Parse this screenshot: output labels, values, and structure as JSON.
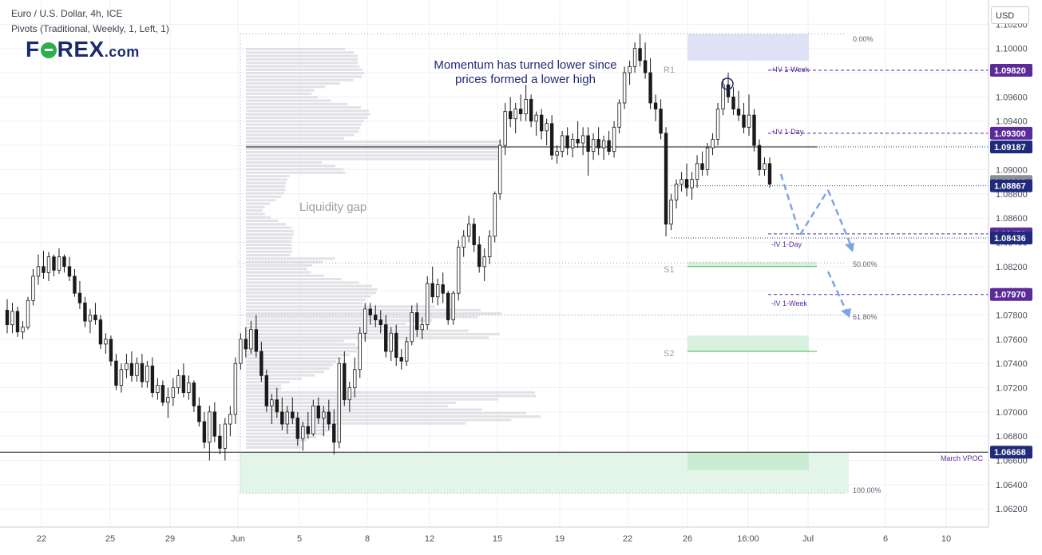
{
  "header": {
    "symbol_line": "Euro / U.S. Dollar, 4h, ICE",
    "indicator_line": "Pivots (Traditional, Weekly, 1, Left, 1)"
  },
  "logo": {
    "text_left": "F",
    "text_right": "REX",
    "suffix": ".com"
  },
  "currency_button": "USD",
  "colors": {
    "accent_purple": "#5b2a9b",
    "dark_blue_label": "#1f2a7a",
    "support_fill": "#d8f2e0",
    "resistance_fill": "#dfe2f5",
    "arrow_blue": "#7fa4e6"
  },
  "chart_data": {
    "type": "candlestick",
    "y_axis": {
      "ylim": [
        1.0605,
        1.104
      ],
      "tick_labels": [
        "1.10200",
        "1.10000",
        "1.09800",
        "1.09600",
        "1.09400",
        "1.09200",
        "1.09000",
        "1.08800",
        "1.08600",
        "1.08400",
        "1.08200",
        "1.08000",
        "1.07800",
        "1.07600",
        "1.07400",
        "1.07200",
        "1.07000",
        "1.06800",
        "1.06600",
        "1.06400",
        "1.06200"
      ]
    },
    "x_axis": {
      "labels": [
        "22",
        "25",
        "29",
        "Jun",
        "5",
        "8",
        "12",
        "15",
        "19",
        "22",
        "26",
        "16:00",
        "Jul",
        "6",
        "10"
      ]
    },
    "price_labels": [
      {
        "text": "1.09820",
        "value": 1.0982,
        "style": "purple"
      },
      {
        "text": "1.09300",
        "value": 1.093,
        "style": "purple"
      },
      {
        "text": "1.09187",
        "value": 1.09187,
        "style": "navy"
      },
      {
        "text": "1.08902",
        "value": 1.08902,
        "style": "gray"
      },
      {
        "text": "1.08867",
        "value": 1.08867,
        "style": "navy"
      },
      {
        "text": "1.08470",
        "value": 1.0847,
        "style": "purple"
      },
      {
        "text": "1.08436",
        "value": 1.08436,
        "style": "navy"
      },
      {
        "text": "1.07970",
        "value": 1.0797,
        "style": "purple"
      },
      {
        "text": "1.06668",
        "value": 1.06668,
        "style": "navy"
      }
    ],
    "annotations": {
      "momentum": [
        "Momentum has turned lower since",
        "prices formed a lower high"
      ],
      "liquidity_gap": "Liquidity gap",
      "march_vpoc": "March VPOC",
      "iv_week_up": "+IV 1-Week",
      "iv_day_up": "+IV 1-Day",
      "iv_day_down": "-IV 1-Day",
      "iv_week_down": "-IV 1-Week",
      "pivot_r1": "R1",
      "pivot_s1": "S1",
      "pivot_s2": "S2",
      "fib_0": "0.00%",
      "fib_50": "50.00%",
      "fib_618": "61.80%",
      "fib_100": "100.00%"
    },
    "levels": {
      "iv_week_up": 1.0982,
      "iv_day_up": 1.093,
      "poc": 1.09187,
      "current": 1.08867,
      "iv_day_down": 1.0847,
      "low_line": 1.08436,
      "fib_0": 1.1012,
      "fib_50": 1.0823,
      "fib_618": 1.078,
      "fib_100": 1.0633,
      "march_vpoc": 1.06668,
      "iv_week_down": 1.0797,
      "r1_zone": [
        1.099,
        1.1012
      ],
      "s1_zone": [
        1.082,
        1.0824
      ],
      "s2_zone": [
        1.075,
        1.0763
      ],
      "lower_zone": [
        1.0633,
        1.06668
      ],
      "lower_zone_dark": [
        1.0652,
        1.06668
      ]
    },
    "candles": [
      [
        1.0784,
        1.0793,
        1.0765,
        1.0772
      ],
      [
        1.0772,
        1.079,
        1.0765,
        1.0783
      ],
      [
        1.0783,
        1.0787,
        1.0762,
        1.0766
      ],
      [
        1.0766,
        1.0775,
        1.076,
        1.077
      ],
      [
        1.077,
        1.0795,
        1.0768,
        1.0792
      ],
      [
        1.0792,
        1.0818,
        1.0788,
        1.0812
      ],
      [
        1.0812,
        1.083,
        1.0805,
        1.082
      ],
      [
        1.082,
        1.0833,
        1.081,
        1.0815
      ],
      [
        1.0815,
        1.0832,
        1.0808,
        1.0828
      ],
      [
        1.0828,
        1.083,
        1.0812,
        1.0817
      ],
      [
        1.0817,
        1.0835,
        1.0814,
        1.0828
      ],
      [
        1.0828,
        1.083,
        1.0815,
        1.082
      ],
      [
        1.082,
        1.0828,
        1.0808,
        1.0812
      ],
      [
        1.0812,
        1.0818,
        1.0795,
        1.0798
      ],
      [
        1.0798,
        1.0808,
        1.0785,
        1.079
      ],
      [
        1.079,
        1.0795,
        1.077,
        1.0775
      ],
      [
        1.0775,
        1.0785,
        1.0765,
        1.078
      ],
      [
        1.078,
        1.079,
        1.0772,
        1.0776
      ],
      [
        1.0776,
        1.078,
        1.0752,
        1.0756
      ],
      [
        1.0756,
        1.0765,
        1.0748,
        1.076
      ],
      [
        1.076,
        1.0763,
        1.0738,
        1.0742
      ],
      [
        1.0742,
        1.0748,
        1.0718,
        1.0722
      ],
      [
        1.0722,
        1.074,
        1.0716,
        1.0735
      ],
      [
        1.0735,
        1.0748,
        1.0728,
        1.074
      ],
      [
        1.074,
        1.075,
        1.0725,
        1.073
      ],
      [
        1.073,
        1.0745,
        1.0725,
        1.074
      ],
      [
        1.074,
        1.0748,
        1.072,
        1.0725
      ],
      [
        1.0725,
        1.0742,
        1.072,
        1.0738
      ],
      [
        1.0738,
        1.0745,
        1.0712,
        1.0716
      ],
      [
        1.0716,
        1.0728,
        1.071,
        1.0722
      ],
      [
        1.0722,
        1.0726,
        1.0705,
        1.0708
      ],
      [
        1.0708,
        1.072,
        1.0695,
        1.0712
      ],
      [
        1.0712,
        1.0728,
        1.0705,
        1.072
      ],
      [
        1.072,
        1.0735,
        1.0715,
        1.073
      ],
      [
        1.073,
        1.074,
        1.0712,
        1.0716
      ],
      [
        1.0716,
        1.073,
        1.071,
        1.0724
      ],
      [
        1.0724,
        1.0726,
        1.07,
        1.0705
      ],
      [
        1.0705,
        1.0712,
        1.0688,
        1.0692
      ],
      [
        1.0692,
        1.07,
        1.067,
        1.0675
      ],
      [
        1.0675,
        1.0705,
        1.066,
        1.07
      ],
      [
        1.07,
        1.0708,
        1.0675,
        1.068
      ],
      [
        1.068,
        1.069,
        1.0665,
        1.067
      ],
      [
        1.067,
        1.0695,
        1.066,
        1.069
      ],
      [
        1.069,
        1.0705,
        1.068,
        1.0698
      ],
      [
        1.0698,
        1.0745,
        1.069,
        1.074
      ],
      [
        1.074,
        1.0765,
        1.0735,
        1.076
      ],
      [
        1.076,
        1.077,
        1.0745,
        1.0752
      ],
      [
        1.0752,
        1.0775,
        1.0748,
        1.0768
      ],
      [
        1.0768,
        1.078,
        1.0745,
        1.075
      ],
      [
        1.075,
        1.0758,
        1.0725,
        1.073
      ],
      [
        1.073,
        1.0735,
        1.07,
        1.0705
      ],
      [
        1.0705,
        1.0715,
        1.069,
        1.071
      ],
      [
        1.071,
        1.072,
        1.0695,
        1.07
      ],
      [
        1.07,
        1.0712,
        1.0685,
        1.069
      ],
      [
        1.069,
        1.0705,
        1.0682,
        1.07
      ],
      [
        1.07,
        1.0712,
        1.069,
        1.0695
      ],
      [
        1.0695,
        1.07,
        1.0672,
        1.0678
      ],
      [
        1.0678,
        1.0692,
        1.0668,
        1.0688
      ],
      [
        1.0688,
        1.07,
        1.0678,
        1.0682
      ],
      [
        1.0682,
        1.071,
        1.068,
        1.0705
      ],
      [
        1.0705,
        1.0712,
        1.069,
        1.0695
      ],
      [
        1.0695,
        1.0705,
        1.068,
        1.07
      ],
      [
        1.07,
        1.071,
        1.0685,
        1.069
      ],
      [
        1.069,
        1.0702,
        1.0665,
        1.0675
      ],
      [
        1.0675,
        1.0745,
        1.067,
        1.074
      ],
      [
        1.074,
        1.075,
        1.0705,
        1.071
      ],
      [
        1.071,
        1.0725,
        1.07,
        1.072
      ],
      [
        1.072,
        1.0745,
        1.0712,
        1.0735
      ],
      [
        1.0735,
        1.077,
        1.0728,
        1.0765
      ],
      [
        1.0765,
        1.079,
        1.0758,
        1.0785
      ],
      [
        1.0785,
        1.079,
        1.0772,
        1.078
      ],
      [
        1.078,
        1.0788,
        1.077,
        1.0776
      ],
      [
        1.0776,
        1.0784,
        1.0765,
        1.0772
      ],
      [
        1.0772,
        1.078,
        1.0745,
        1.075
      ],
      [
        1.075,
        1.077,
        1.0742,
        1.0765
      ],
      [
        1.0765,
        1.0772,
        1.0738,
        1.0745
      ],
      [
        1.0745,
        1.0752,
        1.0735,
        1.0742
      ],
      [
        1.0742,
        1.0762,
        1.0738,
        1.0758
      ],
      [
        1.0758,
        1.0788,
        1.0755,
        1.0782
      ],
      [
        1.0782,
        1.079,
        1.0762,
        1.0768
      ],
      [
        1.0768,
        1.0778,
        1.076,
        1.0772
      ],
      [
        1.0772,
        1.0812,
        1.0768,
        1.0806
      ],
      [
        1.0806,
        1.082,
        1.079,
        1.0795
      ],
      [
        1.0795,
        1.081,
        1.0788,
        1.0805
      ],
      [
        1.0805,
        1.0815,
        1.079,
        1.0798
      ],
      [
        1.0798,
        1.08,
        1.0772,
        1.0776
      ],
      [
        1.0776,
        1.08,
        1.0772,
        1.0798
      ],
      [
        1.0798,
        1.0842,
        1.0792,
        1.0836
      ],
      [
        1.0836,
        1.085,
        1.0828,
        1.0845
      ],
      [
        1.0845,
        1.0862,
        1.084,
        1.0855
      ],
      [
        1.0855,
        1.086,
        1.0832,
        1.0838
      ],
      [
        1.0838,
        1.0845,
        1.0815,
        1.082
      ],
      [
        1.082,
        1.0835,
        1.0808,
        1.0828
      ],
      [
        1.0828,
        1.085,
        1.0822,
        1.0845
      ],
      [
        1.0845,
        1.0882,
        1.084,
        1.088
      ],
      [
        1.088,
        1.0925,
        1.0875,
        1.092
      ],
      [
        1.092,
        1.0955,
        1.0912,
        1.0948
      ],
      [
        1.0948,
        1.096,
        1.0935,
        1.0942
      ],
      [
        1.0942,
        1.0955,
        1.093,
        1.095
      ],
      [
        1.095,
        1.0962,
        1.094,
        1.0946
      ],
      [
        1.0946,
        1.097,
        1.094,
        1.0958
      ],
      [
        1.0958,
        1.0962,
        1.0935,
        1.094
      ],
      [
        1.094,
        1.0948,
        1.0928,
        1.0945
      ],
      [
        1.0945,
        1.095,
        1.0925,
        1.0932
      ],
      [
        1.0932,
        1.0942,
        1.092,
        1.0938
      ],
      [
        1.0938,
        1.0945,
        1.0908,
        1.0912
      ],
      [
        1.0912,
        1.092,
        1.0905,
        1.0915
      ],
      [
        1.0915,
        1.0932,
        1.091,
        1.0928
      ],
      [
        1.0928,
        1.0935,
        1.0912,
        1.0918
      ],
      [
        1.0918,
        1.093,
        1.091,
        1.0925
      ],
      [
        1.0925,
        1.094,
        1.0918,
        1.0922
      ],
      [
        1.0922,
        1.0935,
        1.0912,
        1.0928
      ],
      [
        1.0928,
        1.0935,
        1.0895,
        1.0915
      ],
      [
        1.0915,
        1.093,
        1.0908,
        1.0925
      ],
      [
        1.0925,
        1.0935,
        1.0912,
        1.0918
      ],
      [
        1.0918,
        1.0928,
        1.0908,
        1.0924
      ],
      [
        1.0924,
        1.0932,
        1.0912,
        1.0915
      ],
      [
        1.0915,
        1.094,
        1.091,
        1.0935
      ],
      [
        1.0935,
        1.0958,
        1.093,
        1.0955
      ],
      [
        1.0955,
        1.0985,
        1.095,
        1.098
      ],
      [
        1.098,
        1.099,
        1.097,
        1.0985
      ],
      [
        1.0985,
        1.1005,
        1.098,
        1.1
      ],
      [
        1.1,
        1.1012,
        1.0985,
        1.099
      ],
      [
        1.099,
        1.1005,
        1.0975,
        1.098
      ],
      [
        1.098,
        1.0992,
        1.095,
        1.0955
      ],
      [
        1.0955,
        1.0962,
        1.094,
        1.095
      ],
      [
        1.095,
        1.0958,
        1.0925,
        1.093
      ],
      [
        1.093,
        1.0935,
        1.0845,
        1.0855
      ],
      [
        1.0855,
        1.088,
        1.085,
        1.0875
      ],
      [
        1.0875,
        1.0892,
        1.0868,
        1.0888
      ],
      [
        1.0888,
        1.0898,
        1.0882,
        1.0892
      ],
      [
        1.0892,
        1.0905,
        1.0878,
        1.0885
      ],
      [
        1.0885,
        1.0898,
        1.0875,
        1.0892
      ],
      [
        1.0892,
        1.0912,
        1.0885,
        1.0905
      ],
      [
        1.0905,
        1.0915,
        1.0895,
        1.09
      ],
      [
        1.09,
        1.0922,
        1.0895,
        1.0918
      ],
      [
        1.0918,
        1.093,
        1.0912,
        1.0925
      ],
      [
        1.0925,
        1.0955,
        1.092,
        1.095
      ],
      [
        1.095,
        1.0975,
        1.0945,
        1.097
      ],
      [
        1.097,
        1.098,
        1.0955,
        1.096
      ],
      [
        1.096,
        1.0968,
        1.0945,
        1.095
      ],
      [
        1.095,
        1.0965,
        1.094,
        1.0945
      ],
      [
        1.0945,
        1.0955,
        1.093,
        1.0935
      ],
      [
        1.0935,
        1.0962,
        1.0928,
        1.0945
      ],
      [
        1.0945,
        1.095,
        1.0915,
        1.092
      ],
      [
        1.092,
        1.0925,
        1.0895,
        1.09
      ],
      [
        1.09,
        1.091,
        1.0895,
        1.0905
      ],
      [
        1.0905,
        1.091,
        1.0885,
        1.0888
      ]
    ]
  }
}
